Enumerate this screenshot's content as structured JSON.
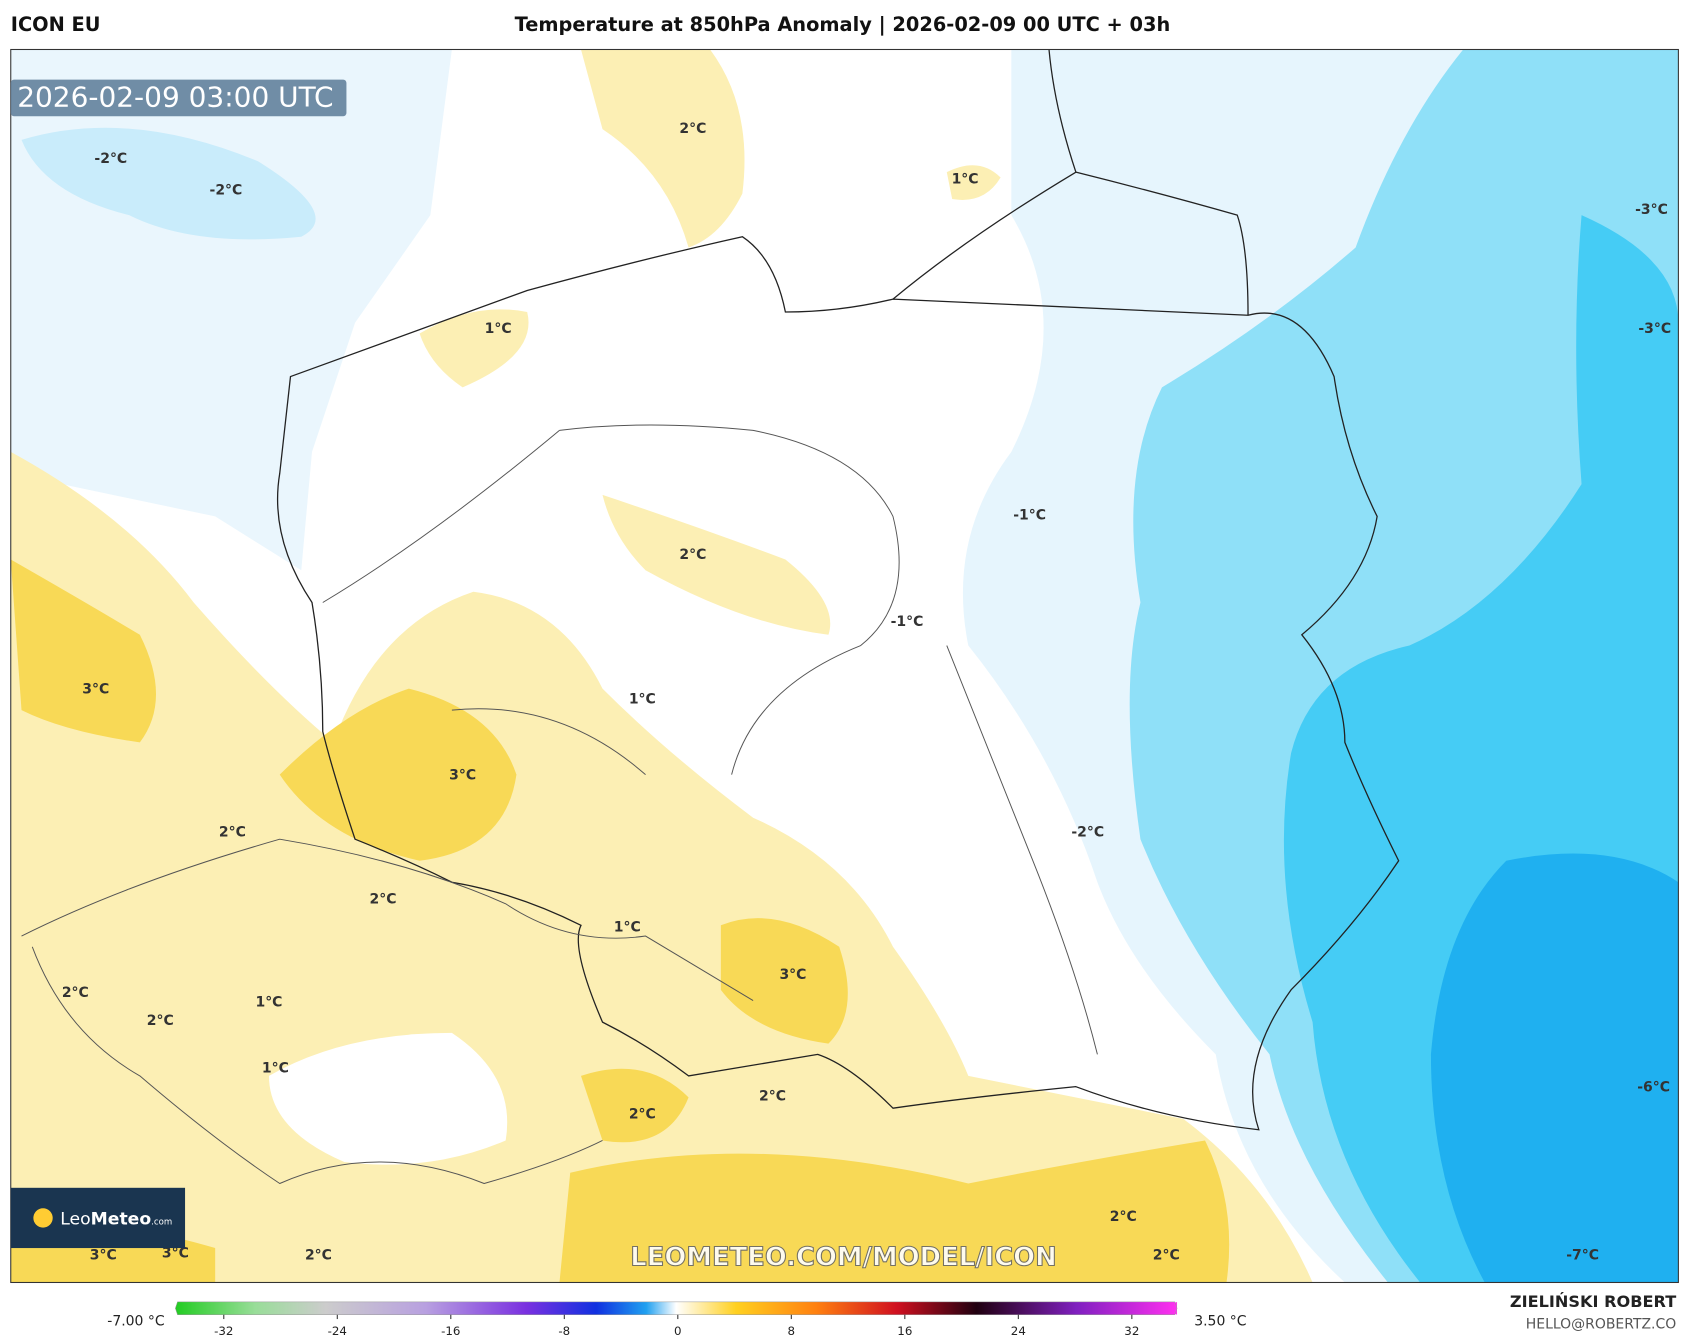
{
  "header": {
    "model": "ICON EU",
    "title": "Temperature at 850hPa Anomaly | 2026-02-09 00 UTC + 03h"
  },
  "timestamp": "2026-02-09 03:00 UTC",
  "contour_labels": [
    "2°C",
    "1°C",
    "-2°C",
    "-2°C",
    "-3°C",
    "1°C",
    "-3°C",
    "-1°C",
    "2°C",
    "-1°C",
    "3°C",
    "1°C",
    "3°C",
    "2°C",
    "-2°C",
    "2°C",
    "1°C",
    "3°C",
    "2°C",
    "1°C",
    "2°C",
    "1°C",
    "-6°C",
    "2°C",
    "2°C",
    "2°C",
    "3°C",
    "3°C",
    "2°C",
    "2°C",
    "-7°C"
  ],
  "watermark": "LEOMETEO.COM/MODEL/ICON",
  "logo": {
    "name": "Leo",
    "brand": "Meteo",
    "suffix": ".com"
  },
  "footer": {
    "author": "ZIELIŃSKI ROBERT",
    "contact": "HELLO@ROBERTZ.CO"
  },
  "colorbar": {
    "min_label": "-7.00 °C",
    "max_label": "3.50 °C",
    "ticks": [
      -32,
      -24,
      -16,
      -8,
      0,
      8,
      16,
      24,
      32
    ]
  }
}
